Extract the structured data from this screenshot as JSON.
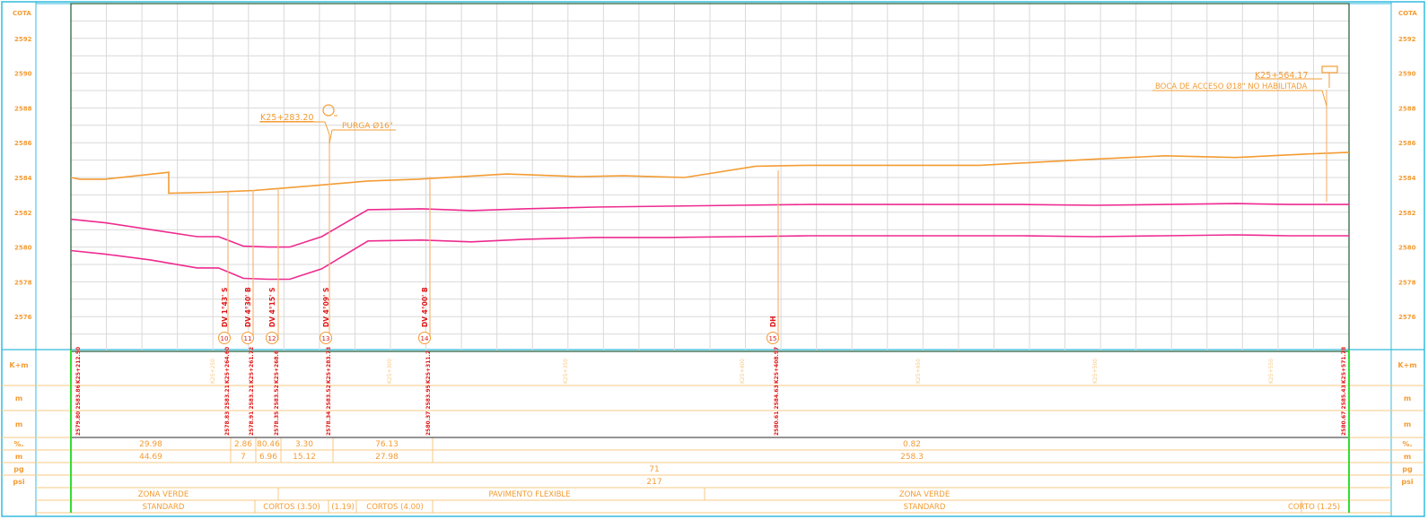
{
  "elevation_axis": {
    "title": "COTA",
    "ticks": [
      "2592",
      "2590",
      "2588",
      "2586",
      "2584",
      "2582",
      "2580",
      "2578",
      "2576"
    ]
  },
  "band_labels": {
    "km": "K+m",
    "m1": "m",
    "m2": "m",
    "pct": "%.",
    "m3": "m",
    "pg": "pg",
    "psi": "psi"
  },
  "annotations": {
    "purga_station": "K25+283.20",
    "purga_text": "PURGA Ø16\"",
    "boca_station": "K25+564.17",
    "boca_text": "BOCA DE ACCESO Ø18\" NO HABILITADA"
  },
  "deflections": [
    {
      "num": "10",
      "label": "DV 1°43' S"
    },
    {
      "num": "11",
      "label": "DV 4°30' B"
    },
    {
      "num": "12",
      "label": "DV 4°15' S"
    },
    {
      "num": "13",
      "label": "DV 4°09' S"
    },
    {
      "num": "14",
      "label": "DV 4°00' B"
    },
    {
      "num": "15",
      "label": "DH"
    }
  ],
  "chainage_ticks": [
    "K25+250",
    "K25+300",
    "K25+350",
    "K25+400",
    "K25+450",
    "K25+500",
    "K25+550"
  ],
  "point_stations": [
    "K25+212.50",
    "K25+264.60",
    "K25+261.72",
    "K25+268.6",
    "K25+283.73",
    "K25+311.2",
    "K25+408.97",
    "K25+571.78"
  ],
  "point_elevations": [
    "2579.80 2583.86",
    "2578.83 2583.21",
    "2578.91 2583.21",
    "2578.35 2583.52",
    "2578.34 2583.52",
    "2580.37 2583.95",
    "2580.61 2584.63",
    "2580.67 2585.43"
  ],
  "slopes": {
    "pct": [
      "29.98",
      "2.86",
      "80.46",
      "3.30",
      "76.13",
      "0.82"
    ],
    "m": [
      "44.69",
      "7",
      "6.96",
      "15.12",
      "27.98",
      "258.3"
    ]
  },
  "pg": "71",
  "psi": "217",
  "surface": [
    "ZONA VERDE",
    "PAVIMENTO FLEXIBLE",
    "ZONA VERDE"
  ],
  "trench": [
    "STANDARD",
    "CORTOS (3.50)",
    "(1.19)",
    "CORTOS (4.00)",
    "STANDARD",
    "CORTO (1.25)"
  ],
  "chart_data": {
    "type": "line",
    "ylabel": "COTA",
    "ylim": [
      2574,
      2594
    ],
    "xlim": [
      212.5,
      571.78
    ],
    "series": [
      {
        "color": "#f39c34",
        "x": [
          212.5,
          215,
          222,
          240,
          240,
          252,
          264,
          270,
          282,
          296,
          310,
          335,
          355,
          368,
          385,
          405,
          420,
          440,
          468,
          500,
          520,
          540,
          560,
          571.78
        ],
        "y": [
          2584.0,
          2583.9,
          2583.9,
          2584.3,
          2583.1,
          2583.15,
          2583.25,
          2583.35,
          2583.55,
          2583.8,
          2583.9,
          2584.2,
          2584.05,
          2584.1,
          2584.0,
          2584.65,
          2584.7,
          2584.7,
          2584.7,
          2585.05,
          2585.25,
          2585.15,
          2585.35,
          2585.45
        ]
      },
      {
        "color": "#ee2a8f",
        "x": [
          212.5,
          222,
          235,
          248,
          254,
          261,
          268,
          274,
          283,
          296,
          311,
          325,
          340,
          360,
          380,
          400,
          420,
          440,
          460,
          480,
          500,
          520,
          540,
          555,
          571.78
        ],
        "y": [
          2581.6,
          2581.4,
          2581.0,
          2580.6,
          2580.6,
          2580.05,
          2580.0,
          2580.0,
          2580.6,
          2582.15,
          2582.2,
          2582.1,
          2582.2,
          2582.3,
          2582.35,
          2582.4,
          2582.45,
          2582.45,
          2582.45,
          2582.45,
          2582.4,
          2582.45,
          2582.5,
          2582.45,
          2582.45
        ]
      },
      {
        "color": "#ee2a8f",
        "x": [
          212.5,
          222,
          235,
          248,
          254,
          261,
          268,
          274,
          283,
          296,
          311,
          325,
          340,
          360,
          380,
          400,
          420,
          440,
          460,
          480,
          500,
          520,
          540,
          555,
          571.78
        ],
        "y": [
          2579.8,
          2579.6,
          2579.25,
          2578.8,
          2578.8,
          2578.2,
          2578.15,
          2578.15,
          2578.75,
          2580.35,
          2580.4,
          2580.3,
          2580.45,
          2580.55,
          2580.55,
          2580.6,
          2580.65,
          2580.65,
          2580.65,
          2580.65,
          2580.6,
          2580.65,
          2580.7,
          2580.65,
          2580.65
        ]
      }
    ]
  }
}
